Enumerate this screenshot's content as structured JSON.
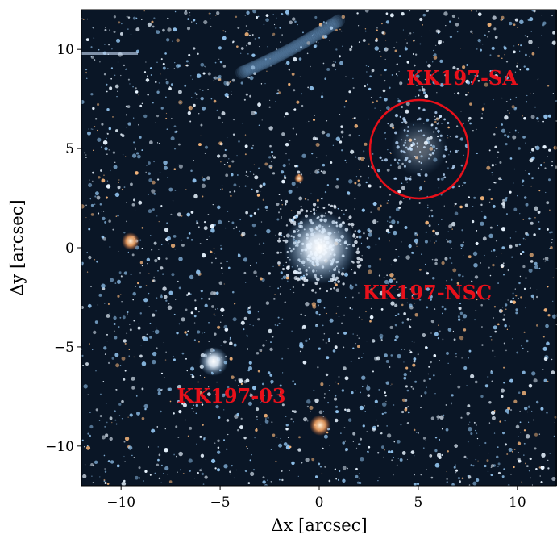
{
  "chart_data": {
    "type": "image",
    "xlabel": "Δx [arcsec]",
    "ylabel": "Δy [arcsec]",
    "xlim": [
      -12,
      12
    ],
    "ylim": [
      -12,
      12
    ],
    "xticks": [
      {
        "value": -10,
        "label": "−10"
      },
      {
        "value": -5,
        "label": "−5"
      },
      0,
      5,
      10
    ],
    "yticks": [
      {
        "value": -10,
        "label": "−10"
      },
      {
        "value": -5,
        "label": "−5"
      },
      0,
      5,
      10
    ],
    "annotations": [
      "KK197-SA",
      "KK197-NSC",
      "KK197-03"
    ],
    "annotation_color": "#e8101a"
  }
}
